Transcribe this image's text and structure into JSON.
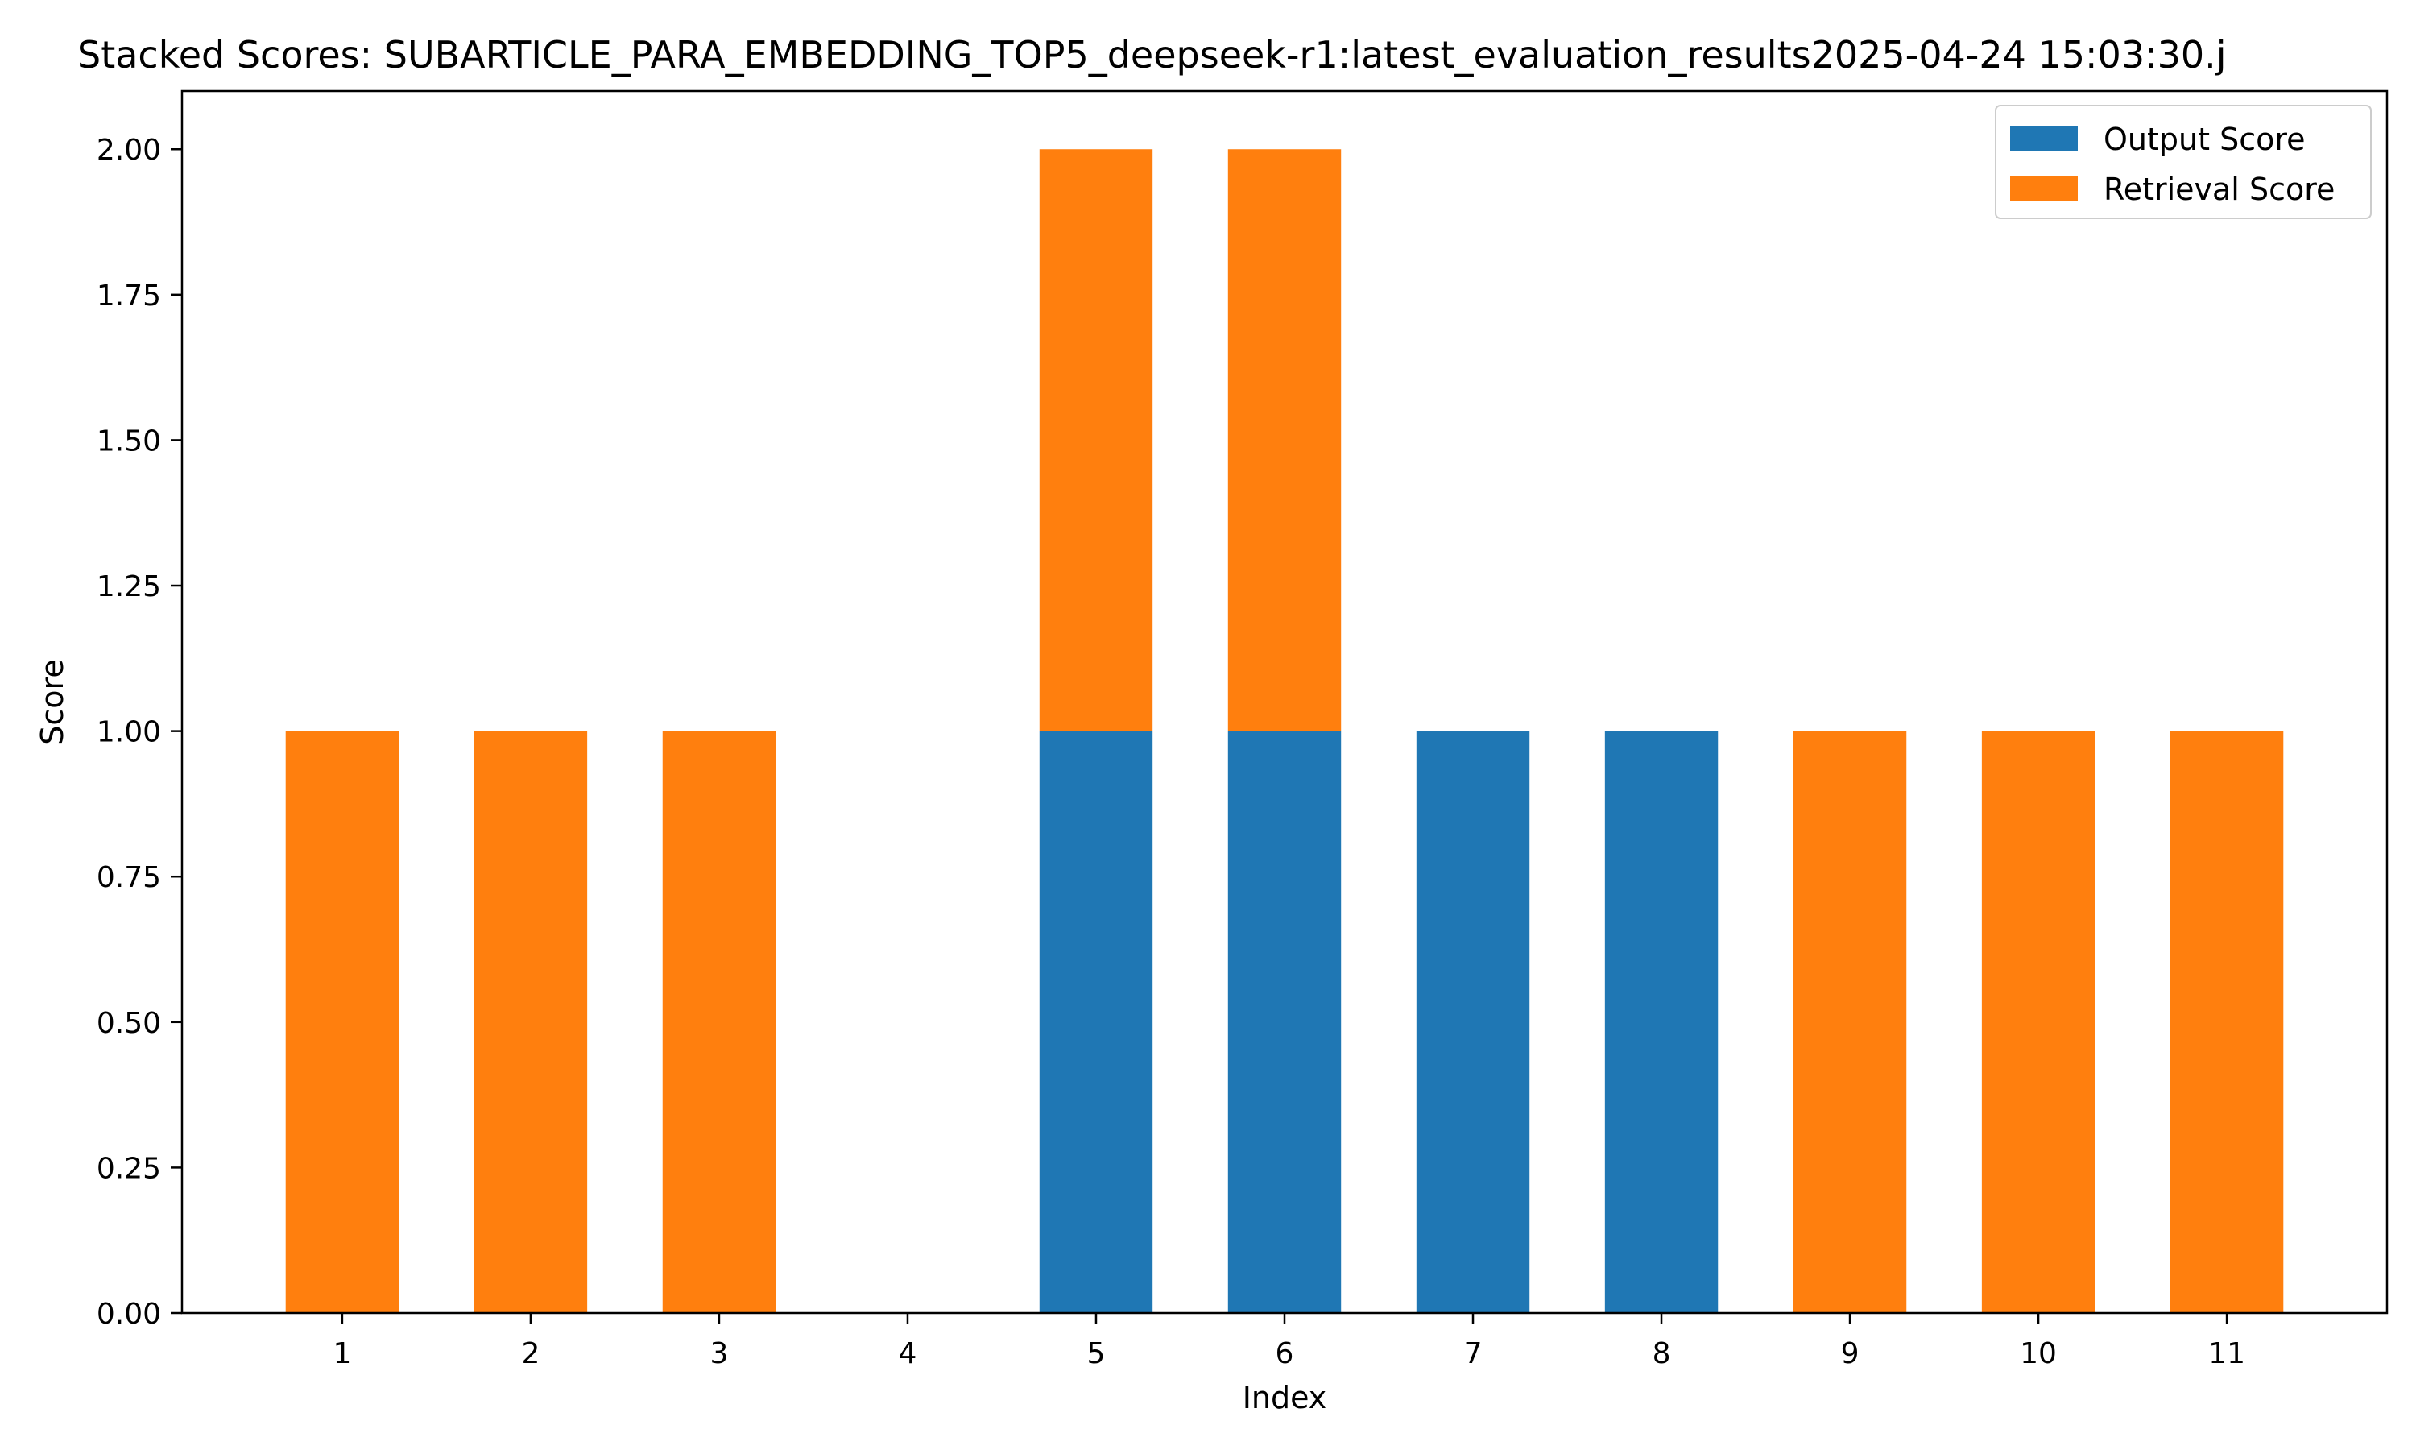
{
  "chart_data": {
    "type": "bar",
    "stacked": true,
    "title": "Stacked Scores: SUBARTICLE_PARA_EMBEDDING_TOP5_deepseek-r1:latest_evaluation_results2025-04-24 15:03:30.j",
    "xlabel": "Index",
    "ylabel": "Score",
    "categories": [
      "1",
      "2",
      "3",
      "4",
      "5",
      "6",
      "7",
      "8",
      "9",
      "10",
      "11"
    ],
    "series": [
      {
        "name": "Output Score",
        "color": "#1f77b4",
        "values": [
          0,
          0,
          0,
          0,
          1,
          1,
          1,
          1,
          0,
          0,
          0
        ]
      },
      {
        "name": "Retrieval Score",
        "color": "#ff7f0e",
        "values": [
          1,
          1,
          1,
          0,
          1,
          1,
          0,
          0,
          1,
          1,
          1
        ]
      }
    ],
    "ylim": [
      0,
      2.1
    ],
    "yticks": [
      "0.00",
      "0.25",
      "0.50",
      "0.75",
      "1.00",
      "1.25",
      "1.50",
      "1.75",
      "2.00"
    ],
    "xlim": [
      0.15,
      11.85
    ],
    "grid": false,
    "legend_position": "top-right"
  }
}
